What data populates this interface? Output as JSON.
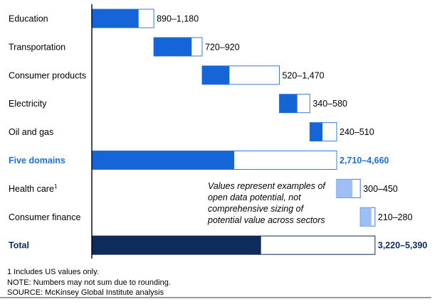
{
  "chart_data": {
    "type": "bar",
    "subtype": "waterfall-range",
    "units_note": "",
    "rows": [
      {
        "label": "Education",
        "low": 890,
        "high": 1180,
        "range_label": "890–1,180",
        "kind": "sector"
      },
      {
        "label": "Transportation",
        "low": 720,
        "high": 920,
        "range_label": "720–920",
        "kind": "sector"
      },
      {
        "label": "Consumer products",
        "low": 520,
        "high": 1470,
        "range_label": "520–1,470",
        "kind": "sector"
      },
      {
        "label": "Electricity",
        "low": 340,
        "high": 580,
        "range_label": "340–580",
        "kind": "sector"
      },
      {
        "label": "Oil and gas",
        "low": 240,
        "high": 510,
        "range_label": "240–510",
        "kind": "sector"
      },
      {
        "label": "Five domains",
        "low": 2710,
        "high": 4660,
        "range_label": "2,710–4,660",
        "kind": "subtotal"
      },
      {
        "label": "Health care",
        "label_sup": "1",
        "low": 300,
        "high": 450,
        "range_label": "300–450",
        "kind": "sector-light"
      },
      {
        "label": "Consumer finance",
        "low": 210,
        "high": 280,
        "range_label": "210–280",
        "kind": "sector-light"
      },
      {
        "label": "Total",
        "low": 3220,
        "high": 5390,
        "range_label": "3,220–5,390",
        "kind": "total"
      }
    ],
    "annotation": [
      "Values represent examples of",
      "open data potential, not",
      "comprehensive sizing of",
      "potential value across sectors"
    ],
    "colors": {
      "sector": "#1565d8",
      "subtotal": "#1565d8",
      "light": "#9dbff5",
      "total": "#0f2b5b",
      "highlight_label": "#1e6fd9",
      "total_label": "#0f2b5b",
      "outline": "#3a78d6"
    }
  },
  "footer": {
    "note1": "1  Includes US values only.",
    "note2": "NOTE: Numbers may not sum due to rounding.",
    "source": "SOURCE: McKinsey Global Institute analysis"
  }
}
